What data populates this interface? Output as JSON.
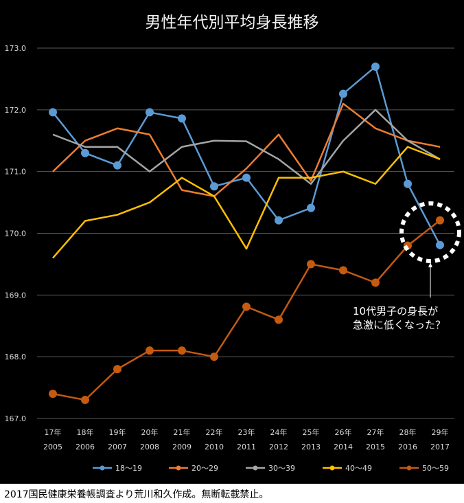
{
  "chart_data": {
    "type": "line",
    "title": "男性年代別平均身長推移",
    "categories": [
      [
        "17年",
        "2005"
      ],
      [
        "18年",
        "2006"
      ],
      [
        "19年",
        "2007"
      ],
      [
        "20年",
        "2008"
      ],
      [
        "21年",
        "2009"
      ],
      [
        "22年",
        "2010"
      ],
      [
        "23年",
        "2011"
      ],
      [
        "24年",
        "2012"
      ],
      [
        "25年",
        "2013"
      ],
      [
        "26年",
        "2014"
      ],
      [
        "27年",
        "2015"
      ],
      [
        "28年",
        "2016"
      ],
      [
        "29年",
        "2017"
      ]
    ],
    "ylim": [
      167.0,
      173.0
    ],
    "yticks": [
      173.0,
      172.0,
      171.0,
      170.0,
      169.0,
      168.0,
      167.0
    ],
    "grid": true,
    "legend_position": "bottom",
    "series": [
      {
        "name": "18〜19",
        "color": "#5B9BD5",
        "markers": true,
        "values": [
          171.96,
          171.3,
          171.1,
          171.96,
          171.86,
          170.76,
          170.9,
          170.21,
          170.41,
          172.26,
          172.7,
          170.8,
          169.81
        ]
      },
      {
        "name": "20〜29",
        "color": "#ED7D31",
        "markers": false,
        "values": [
          171.0,
          171.5,
          171.7,
          171.6,
          170.7,
          170.6,
          171.05,
          171.6,
          170.85,
          172.1,
          171.7,
          171.5,
          171.4
        ]
      },
      {
        "name": "30〜39",
        "color": "#A5A5A5",
        "markers": false,
        "values": [
          171.6,
          171.4,
          171.4,
          171.0,
          171.4,
          171.5,
          171.49,
          171.2,
          170.8,
          171.5,
          172.0,
          171.5,
          171.2
        ]
      },
      {
        "name": "40〜49",
        "color": "#FFC000",
        "markers": false,
        "values": [
          169.6,
          170.2,
          170.3,
          170.5,
          170.9,
          170.6,
          169.75,
          170.9,
          170.9,
          171.0,
          170.8,
          171.4,
          171.2
        ]
      },
      {
        "name": "50〜59",
        "color": "#C55A11",
        "markers": true,
        "values": [
          167.4,
          167.3,
          167.8,
          168.1,
          168.1,
          168.0,
          168.81,
          168.6,
          169.5,
          169.4,
          169.2,
          169.8,
          170.21
        ]
      }
    ],
    "annotation": {
      "lines": [
        "10代男子の身長が",
        "急激に低くなった？"
      ]
    }
  },
  "footer": {
    "text": "2017国民健康栄養帳調査より荒川和久作成。無断転載禁止。"
  }
}
